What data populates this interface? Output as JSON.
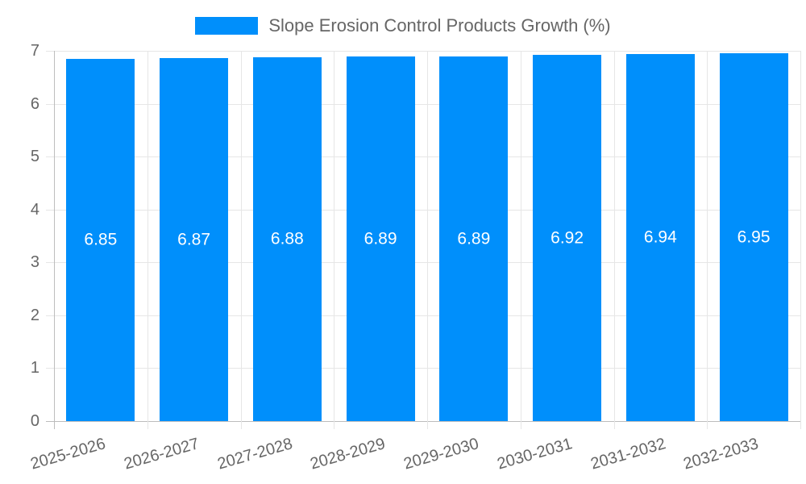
{
  "legend": {
    "label": "Slope Erosion Control Products Growth (%)"
  },
  "chart_data": {
    "type": "bar",
    "title": "Slope Erosion Control Products Growth (%)",
    "categories": [
      "2025-2026",
      "2026-2027",
      "2027-2028",
      "2028-2029",
      "2029-2030",
      "2030-2031",
      "2031-2032",
      "2032-2033"
    ],
    "values": [
      6.85,
      6.87,
      6.88,
      6.89,
      6.89,
      6.92,
      6.94,
      6.95
    ],
    "data_labels": [
      "6.85",
      "6.87",
      "6.88",
      "6.89",
      "6.89",
      "6.92",
      "6.94",
      "6.95"
    ],
    "xlabel": "",
    "ylabel": "",
    "ylim": [
      0,
      7
    ],
    "yticks": [
      0,
      1,
      2,
      3,
      4,
      5,
      6,
      7
    ],
    "grid": true,
    "legend_position": "top",
    "bar_color": "#008FFB",
    "data_label_color": "#ffffff",
    "tick_text_color": "#666666",
    "grid_color": "#e6e6e6",
    "axis_line_color": "#bdbdbd"
  }
}
